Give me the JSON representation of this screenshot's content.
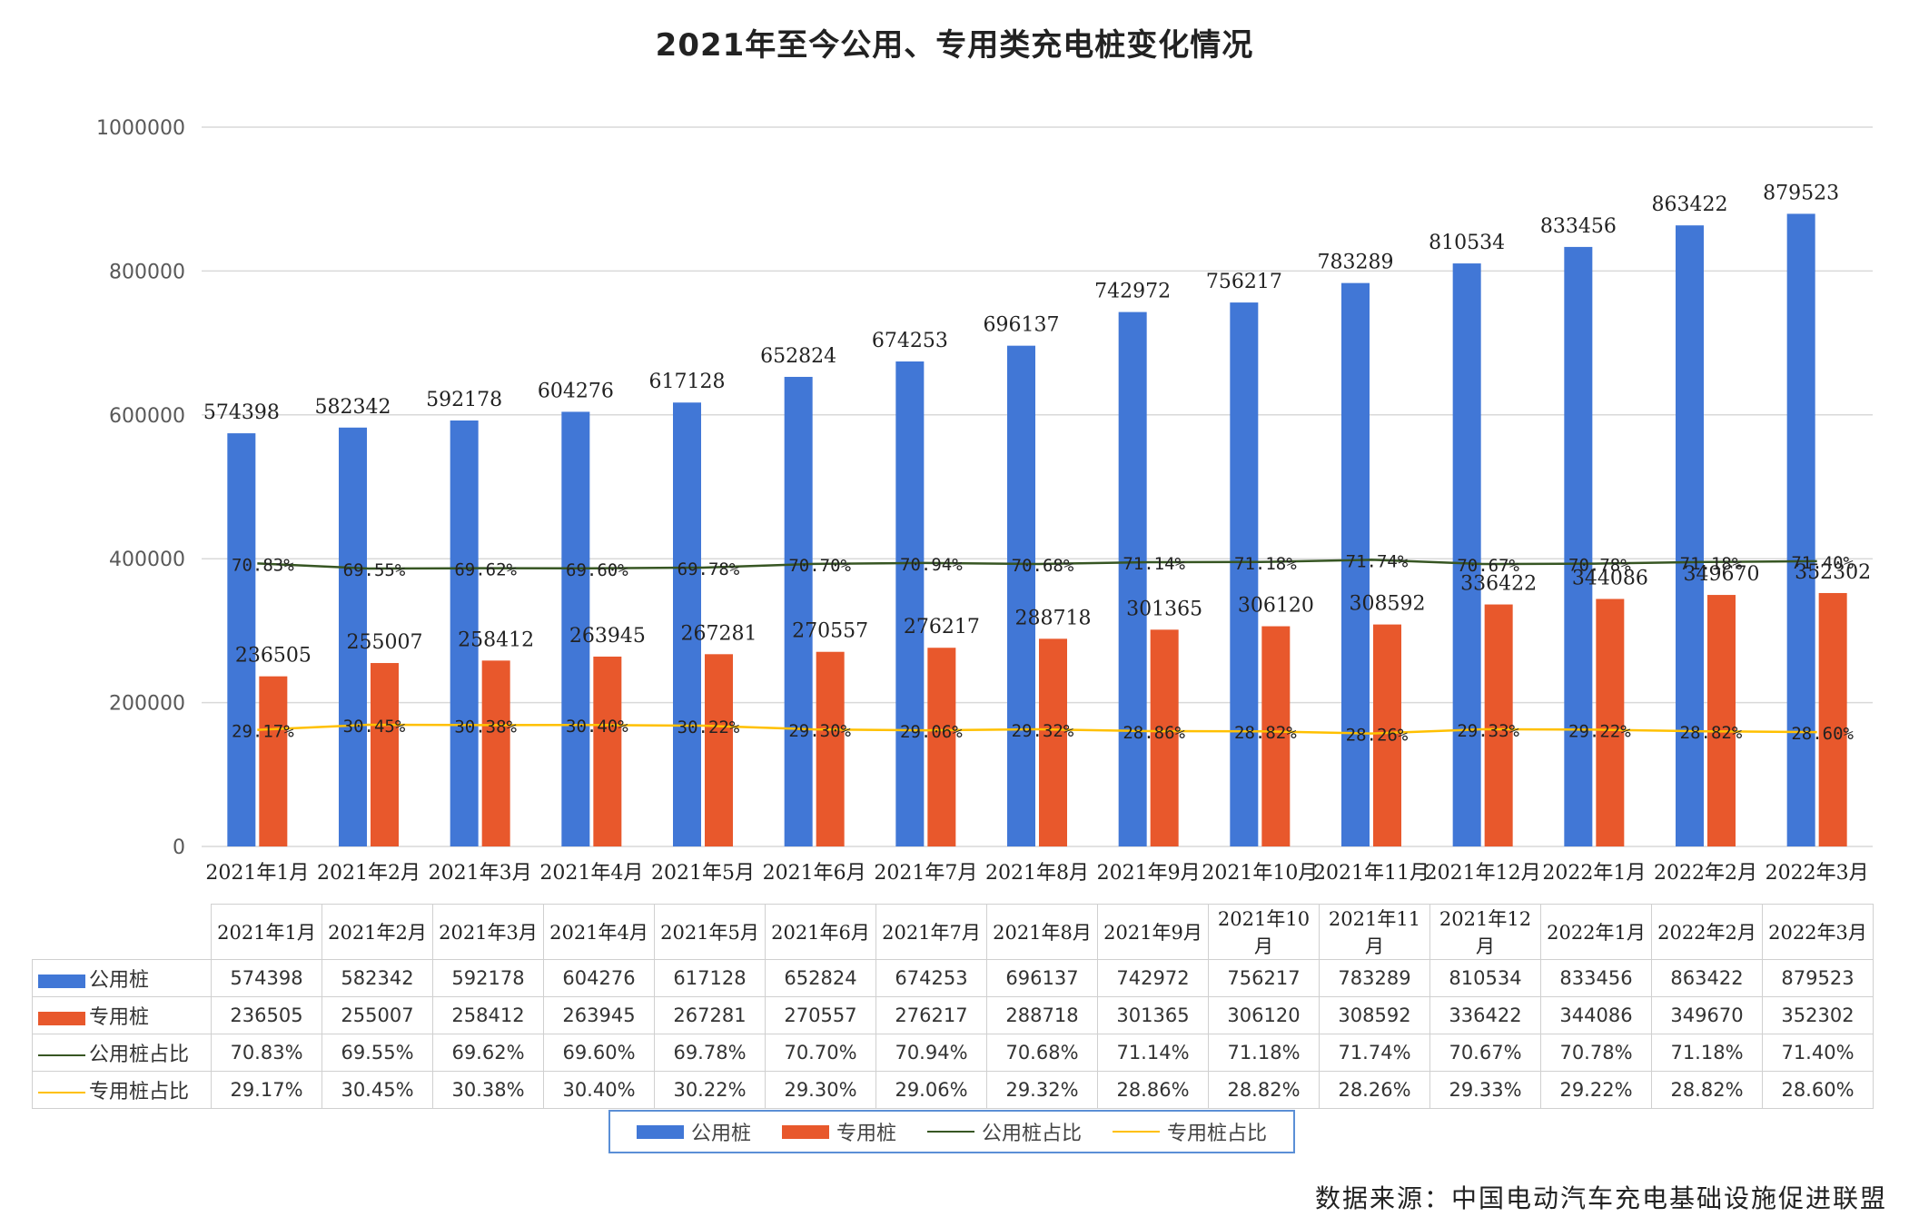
{
  "title": "2021年至今公用、专用类充电桩变化情况",
  "source": "数据来源：中国电动汽车充电基础设施促进联盟",
  "colors": {
    "public_bar": "#4177d6",
    "private_bar": "#e8582c",
    "public_ratio_line": "#375623",
    "private_ratio_line": "#ffc000",
    "grid": "#d9d9d9"
  },
  "legend": {
    "items": [
      {
        "label": "公用桩",
        "kind": "bar",
        "color": "#4177d6"
      },
      {
        "label": "专用桩",
        "kind": "bar",
        "color": "#e8582c"
      },
      {
        "label": "公用桩占比",
        "kind": "line",
        "color": "#375623"
      },
      {
        "label": "专用桩占比",
        "kind": "line",
        "color": "#ffc000"
      }
    ]
  },
  "chart_data": {
    "type": "bar",
    "title": "2021年至今公用、专用类充电桩变化情况",
    "categories": [
      "2021年1月",
      "2021年2月",
      "2021年3月",
      "2021年4月",
      "2021年5月",
      "2021年6月",
      "2021年7月",
      "2021年8月",
      "2021年9月",
      "2021年10月",
      "2021年11月",
      "2021年12月",
      "2022年1月",
      "2022年2月",
      "2022年3月"
    ],
    "y_ticks": [
      0,
      200000,
      400000,
      600000,
      800000,
      1000000
    ],
    "ylim": [
      0,
      1000000
    ],
    "grid": true,
    "legend_position": "bottom",
    "series": [
      {
        "name": "公用桩",
        "kind": "bar",
        "values": [
          574398,
          582342,
          592178,
          604276,
          617128,
          652824,
          674253,
          696137,
          742972,
          756217,
          783289,
          810534,
          833456,
          863422,
          879523
        ]
      },
      {
        "name": "专用桩",
        "kind": "bar",
        "values": [
          236505,
          255007,
          258412,
          263945,
          267281,
          270557,
          276217,
          288718,
          301365,
          306120,
          308592,
          336422,
          344086,
          349670,
          352302
        ]
      },
      {
        "name": "公用桩占比",
        "kind": "line",
        "values": [
          70.83,
          69.55,
          69.62,
          69.6,
          69.78,
          70.7,
          70.94,
          70.68,
          71.14,
          71.18,
          71.74,
          70.67,
          70.78,
          71.18,
          71.4
        ],
        "labels": [
          "70.83%",
          "69.55%",
          "69.62%",
          "69.60%",
          "69.78%",
          "70.70%",
          "70.94%",
          "70.68%",
          "71.14%",
          "71.18%",
          "71.74%",
          "70.67%",
          "70.78%",
          "71.18%",
          "71.40%"
        ]
      },
      {
        "name": "专用桩占比",
        "kind": "line",
        "values": [
          29.17,
          30.45,
          30.38,
          30.4,
          30.22,
          29.3,
          29.06,
          29.32,
          28.86,
          28.82,
          28.26,
          29.33,
          29.22,
          28.82,
          28.6
        ],
        "labels": [
          "29.17%",
          "30.45%",
          "30.38%",
          "30.40%",
          "30.22%",
          "29.30%",
          "29.06%",
          "29.32%",
          "28.86%",
          "28.82%",
          "28.26%",
          "29.33%",
          "29.22%",
          "28.82%",
          "28.60%"
        ]
      }
    ]
  }
}
